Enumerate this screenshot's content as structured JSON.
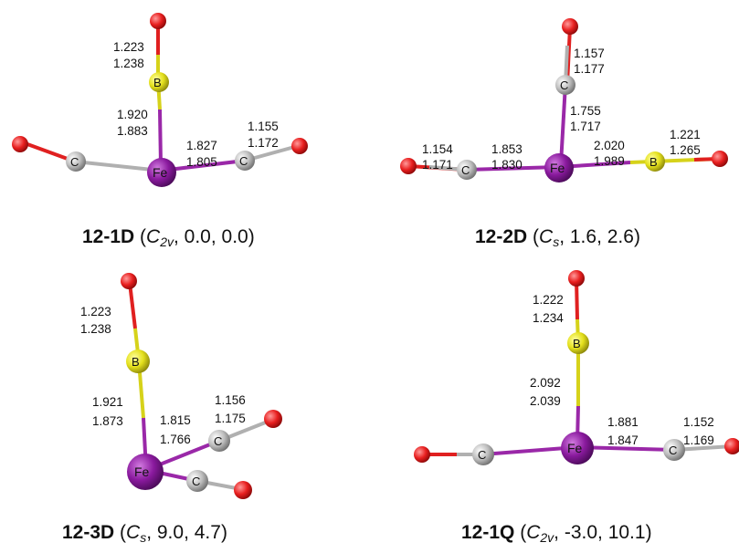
{
  "colors": {
    "Fe": "#8a1a9e",
    "C": "#b8b8b8",
    "B": "#e4e01c",
    "O": "#e81f1f",
    "bond_FeC": "#9a28a8",
    "bond_CO_C": "#b0b0b0",
    "bond_CO_O": "#e02020",
    "bond_FeB": "#9a28a8",
    "bond_B": "#d6d21a"
  },
  "structures": [
    {
      "id": "12-1D",
      "symmetry_base": "C",
      "symmetry_sub": "2v",
      "values": "0.0, 0.0",
      "bond_lengths": {
        "BO": [
          "1.223",
          "1.238"
        ],
        "FeB": [
          "1.920",
          "1.883"
        ],
        "FeC_right": [
          "1.827",
          "1.805"
        ],
        "CO_right": [
          "1.155",
          "1.172"
        ]
      }
    },
    {
      "id": "12-2D",
      "symmetry_base": "C",
      "symmetry_sub": "s",
      "values": "1.6, 2.6",
      "bond_lengths": {
        "CO_top": [
          "1.157",
          "1.177"
        ],
        "FeC_top": [
          "1.755",
          "1.717"
        ],
        "CO_left": [
          "1.154",
          "1.171"
        ],
        "FeC_left": [
          "1.853",
          "1.830"
        ],
        "FeB": [
          "2.020",
          "1.989"
        ],
        "BO": [
          "1.221",
          "1.265"
        ]
      }
    },
    {
      "id": "12-3D",
      "symmetry_base": "C",
      "symmetry_sub": "s",
      "values": "9.0, 4.7",
      "bond_lengths": {
        "BO": [
          "1.223",
          "1.238"
        ],
        "FeB": [
          "1.921",
          "1.873"
        ],
        "FeC": [
          "1.815",
          "1.766"
        ],
        "CO": [
          "1.156",
          "1.175"
        ]
      }
    },
    {
      "id": "12-1Q",
      "symmetry_base": "C",
      "symmetry_sub": "2v",
      "values": "-3.0, 10.1",
      "bond_lengths": {
        "BO": [
          "1.222",
          "1.234"
        ],
        "FeB": [
          "2.092",
          "2.039"
        ],
        "FeC": [
          "1.881",
          "1.847"
        ],
        "CO": [
          "1.152",
          "1.169"
        ]
      }
    }
  ]
}
